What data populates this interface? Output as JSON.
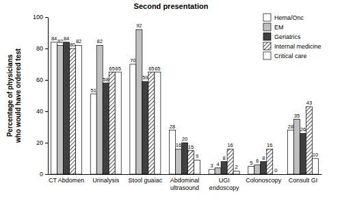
{
  "chart_data": {
    "type": "bar",
    "title": "Second presentation",
    "y_label": "Percentage of physicians who would have ordered test",
    "categories": [
      "CT Abdomen",
      "Urinalysis",
      "Stool guaiac",
      "Abdominal ultrasound",
      "UGI endoscopy",
      "Colonoscopy",
      "Consult GI"
    ],
    "series": [
      {
        "name": "Hema/Onc",
        "color": "#ffffff",
        "values": [
          84,
          51,
          70,
          28,
          3,
          5,
          28
        ]
      },
      {
        "name": "EM",
        "color": "#c0c0c0",
        "values": [
          82,
          82,
          92,
          16,
          4,
          6,
          35
        ]
      },
      {
        "name": "Geriatrics",
        "color": "#404040",
        "values": [
          84,
          58,
          59,
          20,
          8,
          8,
          26
        ]
      },
      {
        "name": "Internal medicine",
        "color": "#ffffff",
        "line_style": "hatched",
        "values": [
          80,
          65,
          65,
          15,
          16,
          16,
          43
        ]
      },
      {
        "name": "Critical care",
        "color": "#ffffff",
        "values": [
          82,
          65,
          65,
          9,
          2,
          0,
          10
        ]
      }
    ],
    "ylim": [
      0,
      100
    ],
    "yticks": [
      0,
      20,
      40,
      60,
      80,
      100
    ],
    "data_labels": true,
    "legend": "upper right",
    "grid": false
  }
}
